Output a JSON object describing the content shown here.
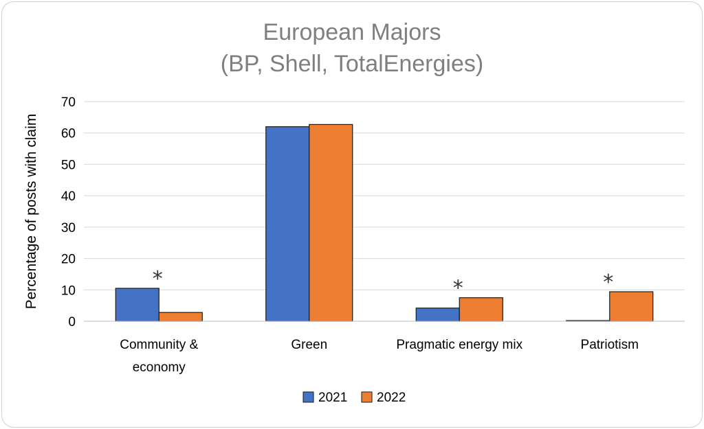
{
  "chart_data": {
    "type": "bar",
    "title": "European Majors",
    "subtitle": "(BP, Shell, TotalEnergies)",
    "xlabel": "",
    "ylabel": "Percentage of posts with claim",
    "ylim": [
      0,
      70
    ],
    "yticks": [
      "0",
      "10",
      "20",
      "30",
      "40",
      "50",
      "60",
      "70"
    ],
    "grid": true,
    "legend_position": "bottom",
    "categories": [
      [
        "Community &",
        "economy"
      ],
      [
        "Green"
      ],
      [
        "Pragmatic energy mix"
      ],
      [
        "Patriotism"
      ]
    ],
    "series": [
      {
        "name": "2021",
        "color": "#4472C4",
        "values": [
          10.5,
          62,
          4.2,
          0.2
        ]
      },
      {
        "name": "2022",
        "color": "#ED7D31",
        "values": [
          2.8,
          62.7,
          7.5,
          9.4
        ]
      }
    ],
    "annotations": [
      {
        "category_index": 0,
        "text": "*"
      },
      {
        "category_index": 2,
        "text": "*"
      },
      {
        "category_index": 3,
        "text": "*"
      }
    ]
  }
}
